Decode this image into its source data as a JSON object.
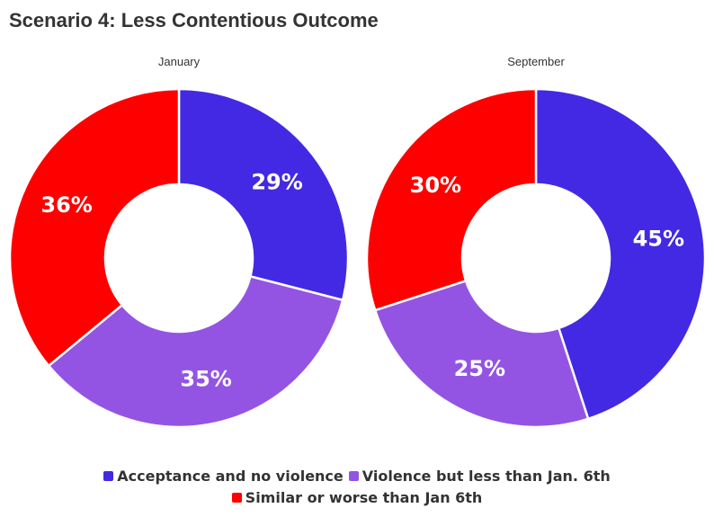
{
  "title": "Scenario 4: Less Contentious Outcome",
  "chart_data": [
    {
      "type": "pie",
      "subtitle": "January",
      "categories": [
        "Acceptance and no violence",
        "Violence but less than Jan. 6th",
        "Similar or worse than Jan 6th"
      ],
      "values": [
        29,
        35,
        36
      ],
      "labels": [
        "29%",
        "35%",
        "36%"
      ],
      "colors": [
        "#4329e3",
        "#9454e3",
        "#ff0000"
      ],
      "donut": true
    },
    {
      "type": "pie",
      "subtitle": "September",
      "categories": [
        "Acceptance and no violence",
        "Violence but less than Jan. 6th",
        "Similar or worse than Jan 6th"
      ],
      "values": [
        45,
        25,
        30
      ],
      "labels": [
        "45%",
        "25%",
        "30%"
      ],
      "colors": [
        "#4329e3",
        "#9454e3",
        "#ff0000"
      ],
      "donut": true
    }
  ],
  "legend": {
    "items": [
      {
        "label": "Acceptance and no violence",
        "color": "#4329e3"
      },
      {
        "label": "Violence but less than Jan. 6th",
        "color": "#9454e3"
      },
      {
        "label": "Similar or worse than Jan 6th",
        "color": "#ff0000"
      }
    ]
  }
}
